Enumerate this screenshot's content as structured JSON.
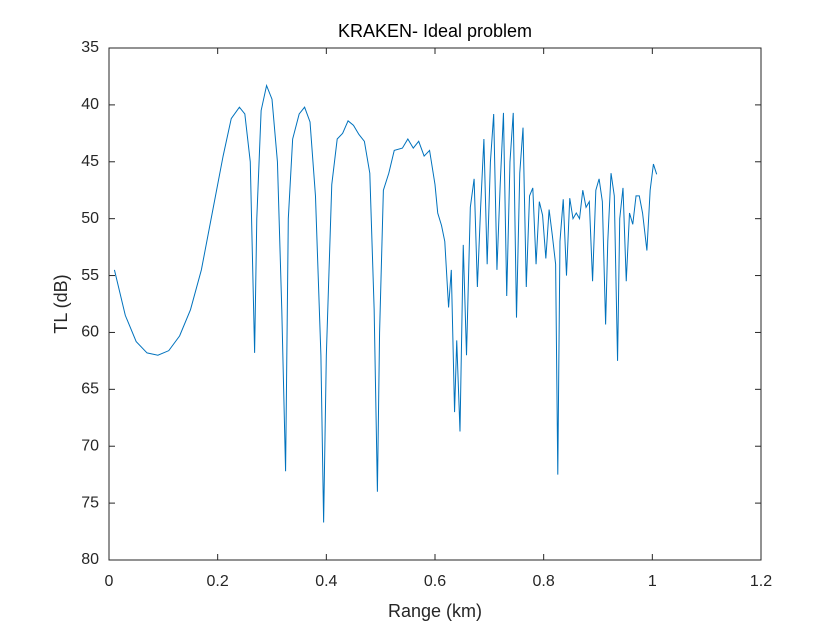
{
  "chart_data": {
    "type": "line",
    "title": "KRAKEN- Ideal problem",
    "x_label": "Range (km)",
    "y_label": "TL (dB)",
    "x": [
      0.01,
      0.03,
      0.05,
      0.07,
      0.09,
      0.11,
      0.13,
      0.15,
      0.17,
      0.19,
      0.21,
      0.225,
      0.24,
      0.25,
      0.26,
      0.268,
      0.272,
      0.28,
      0.29,
      0.3,
      0.31,
      0.318,
      0.325,
      0.33,
      0.338,
      0.35,
      0.36,
      0.37,
      0.38,
      0.39,
      0.395,
      0.4,
      0.41,
      0.42,
      0.43,
      0.44,
      0.45,
      0.46,
      0.47,
      0.48,
      0.488,
      0.494,
      0.498,
      0.505,
      0.515,
      0.525,
      0.54,
      0.55,
      0.56,
      0.57,
      0.58,
      0.59,
      0.6,
      0.605,
      0.612,
      0.618,
      0.625,
      0.63,
      0.636,
      0.64,
      0.646,
      0.652,
      0.658,
      0.665,
      0.672,
      0.678,
      0.684,
      0.69,
      0.696,
      0.702,
      0.708,
      0.714,
      0.72,
      0.726,
      0.732,
      0.738,
      0.744,
      0.75,
      0.756,
      0.762,
      0.768,
      0.774,
      0.78,
      0.786,
      0.792,
      0.798,
      0.804,
      0.81,
      0.816,
      0.822,
      0.826,
      0.83,
      0.836,
      0.842,
      0.848,
      0.854,
      0.86,
      0.866,
      0.872,
      0.878,
      0.884,
      0.89,
      0.896,
      0.902,
      0.908,
      0.914,
      0.918,
      0.924,
      0.93,
      0.936,
      0.94,
      0.946,
      0.952,
      0.958,
      0.964,
      0.97,
      0.976,
      0.982,
      0.99,
      0.996,
      1.002,
      1.008
    ],
    "series": [
      {
        "color": "#0072bd",
        "values": [
          54.5,
          58.5,
          60.8,
          61.8,
          62.0,
          61.6,
          60.3,
          58.0,
          54.5,
          49.5,
          44.5,
          41.2,
          40.2,
          40.8,
          45,
          61.8,
          50,
          40.5,
          38.3,
          39.5,
          45,
          58,
          72.2,
          50,
          43,
          40.8,
          40.2,
          41.5,
          48,
          62,
          76.7,
          62,
          47,
          43,
          42.5,
          41.4,
          41.8,
          42.6,
          43.2,
          46,
          58,
          74,
          60,
          47.5,
          46,
          44,
          43.8,
          43,
          43.8,
          43.2,
          44.5,
          44,
          47,
          49.5,
          50.6,
          52,
          57.8,
          54.5,
          67,
          60.7,
          68.7,
          52.3,
          62,
          49,
          46.5,
          56,
          49,
          43,
          54,
          45,
          40.8,
          54.5,
          47,
          40.7,
          56.8,
          45,
          40.7,
          58.7,
          46,
          42,
          56,
          48,
          47.3,
          54,
          48.5,
          49.7,
          53.5,
          49.2,
          51.5,
          54,
          72.5,
          52,
          48.3,
          55,
          48.2,
          50,
          49.5,
          50,
          47.5,
          49,
          48.5,
          55.5,
          47.5,
          46.5,
          48.5,
          59.3,
          52,
          46,
          48,
          62.5,
          50,
          47.3,
          55.5,
          49.5,
          50.5,
          48,
          48,
          49.5,
          52.8,
          47.5,
          45.2,
          46.1
        ]
      }
    ],
    "xlim": [
      0,
      1.2
    ],
    "xticks": [
      0,
      0.2,
      0.4,
      0.6,
      0.8,
      1,
      1.2
    ],
    "ylim": [
      35,
      80
    ],
    "yticks": [
      35,
      40,
      45,
      50,
      55,
      60,
      65,
      70,
      75,
      80
    ],
    "y_reversed": true
  }
}
